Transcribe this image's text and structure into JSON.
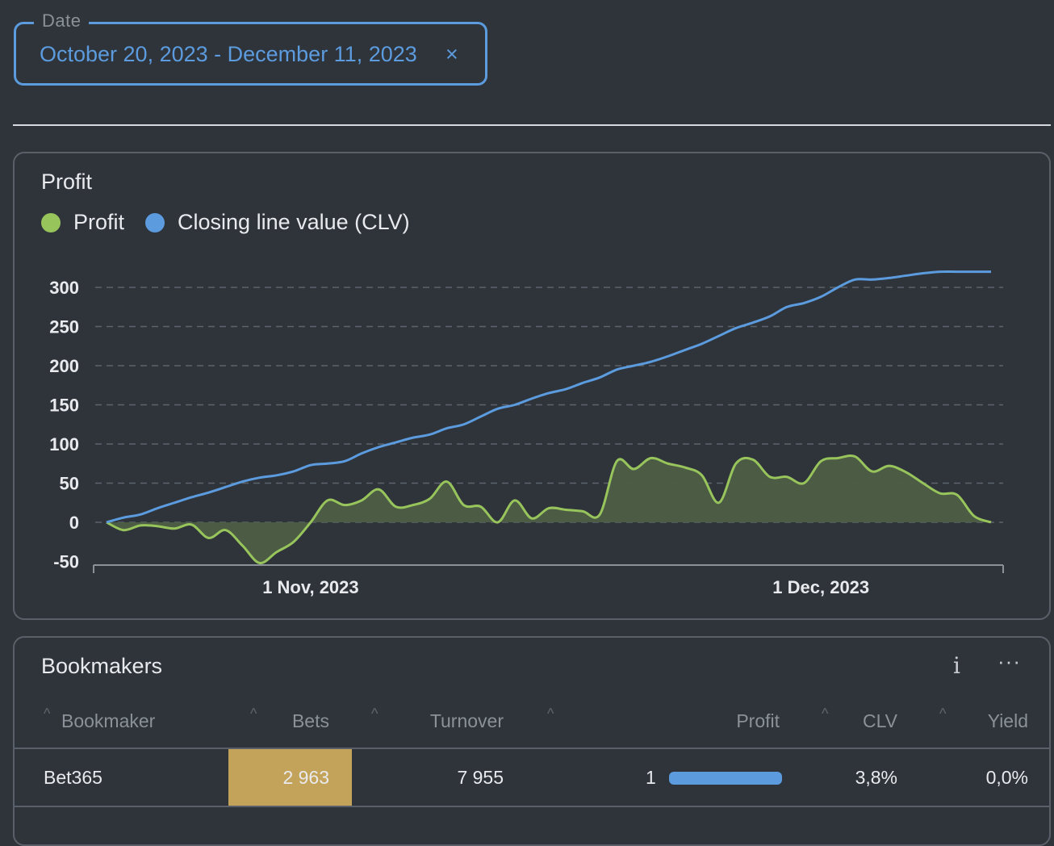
{
  "filter": {
    "legend": "Date",
    "value": "October 20, 2023 - December 11, 2023",
    "clear": "×"
  },
  "profit_card": {
    "title": "Profit",
    "legend": [
      {
        "label": "Profit",
        "color": "#98c45c"
      },
      {
        "label": "Closing line value (CLV)",
        "color": "#5b9bde"
      }
    ]
  },
  "chart_data": {
    "type": "area",
    "title": "Profit",
    "x_tick_labels": [
      "1 Nov, 2023",
      "1 Dec, 2023"
    ],
    "x_tick_positions_day": [
      12,
      42
    ],
    "y_ticks": [
      300,
      250,
      200,
      150,
      100,
      50,
      0,
      -50
    ],
    "ylim": [
      -53,
      300
    ],
    "xlim_days": [
      0,
      52
    ],
    "grid": true,
    "series": [
      {
        "name": "Profit",
        "color": "#98c45c",
        "fill": "#4d5e44",
        "x_day": [
          0,
          1,
          2,
          3,
          4,
          5,
          6,
          7,
          8,
          9,
          10,
          11,
          12,
          13,
          14,
          15,
          16,
          17,
          18,
          19,
          20,
          21,
          22,
          23,
          24,
          25,
          26,
          27,
          28,
          29,
          30,
          31,
          32,
          33,
          34,
          35,
          36,
          37,
          38,
          39,
          40,
          41,
          42,
          43,
          44,
          45,
          46,
          47,
          48,
          49,
          50,
          51,
          52
        ],
        "values": [
          0,
          -10,
          -4,
          -5,
          -8,
          -3,
          -20,
          -10,
          -30,
          -52,
          -38,
          -25,
          0,
          28,
          22,
          28,
          42,
          20,
          22,
          30,
          52,
          22,
          20,
          0,
          28,
          5,
          18,
          16,
          14,
          10,
          78,
          68,
          82,
          75,
          70,
          60,
          25,
          75,
          80,
          58,
          58,
          50,
          78,
          82,
          84,
          65,
          72,
          64,
          50,
          37,
          35,
          8,
          0
        ]
      },
      {
        "name": "Closing line value (CLV)",
        "color": "#5b9bde",
        "x_day": [
          0,
          1,
          2,
          3,
          4,
          5,
          6,
          7,
          8,
          9,
          10,
          11,
          12,
          13,
          14,
          15,
          16,
          17,
          18,
          19,
          20,
          21,
          22,
          23,
          24,
          25,
          26,
          27,
          28,
          29,
          30,
          31,
          32,
          33,
          34,
          35,
          36,
          37,
          38,
          39,
          40,
          41,
          42,
          43,
          44,
          45,
          46,
          47,
          48,
          49,
          50,
          51,
          52
        ],
        "values": [
          0,
          6,
          10,
          18,
          25,
          32,
          38,
          45,
          52,
          57,
          60,
          65,
          73,
          75,
          78,
          88,
          96,
          102,
          108,
          112,
          120,
          125,
          135,
          145,
          150,
          158,
          165,
          170,
          178,
          185,
          195,
          200,
          205,
          212,
          220,
          228,
          238,
          248,
          255,
          263,
          275,
          280,
          288,
          300,
          310,
          310,
          312,
          315,
          318,
          320,
          320,
          320,
          320
        ]
      }
    ]
  },
  "bookmakers": {
    "title": "Bookmakers",
    "info_icon": "i",
    "more_icon": "···",
    "columns": [
      "Bookmaker",
      "Bets",
      "Turnover",
      "Profit",
      "CLV",
      "Yield"
    ],
    "rows": [
      {
        "bookmaker": "Bet365",
        "bets": "2 963",
        "turnover": "7 955",
        "profit": "1",
        "profit_fraction": 1.0,
        "clv": "3,8%",
        "yield": "0,0%",
        "profit_bar_color": "#5b9bde",
        "bets_bg": "#c3a35a"
      }
    ]
  }
}
